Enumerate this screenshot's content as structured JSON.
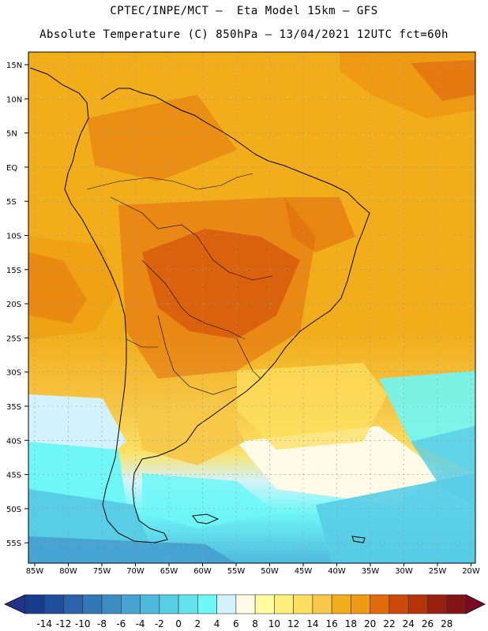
{
  "title_line1": "CPTEC/INPE/MCT –  Eta Model 15km – GFS",
  "title_line2": "Absolute Temperature (C) 850hPa – 13/04/2021 12UTC fct=60h",
  "lat_labels": [
    "15N",
    "10N",
    "5N",
    "EQ",
    "5S",
    "10S",
    "15S",
    "20S",
    "25S",
    "30S",
    "35S",
    "40S",
    "45S",
    "50S",
    "55S"
  ],
  "lon_labels": [
    "85W",
    "80W",
    "75W",
    "70W",
    "65W",
    "60W",
    "55W",
    "50W",
    "45W",
    "40W",
    "35W",
    "30W",
    "25W",
    "20W"
  ],
  "colorbar": {
    "ticks": [
      "-14",
      "-12",
      "-10",
      "-8",
      "-6",
      "-4",
      "-2",
      "0",
      "2",
      "4",
      "6",
      "8",
      "10",
      "12",
      "14",
      "16",
      "18",
      "20",
      "22",
      "24",
      "26",
      "28"
    ],
    "colors": [
      "#173c8c",
      "#1f4f9c",
      "#2b62aa",
      "#3477b7",
      "#3d8cc4",
      "#46a3d2",
      "#4fb9dd",
      "#58cde6",
      "#63e3ee",
      "#6ff7f7",
      "#d2f3fb",
      "#fffbe6",
      "#fffd9e",
      "#fff07e",
      "#fde060",
      "#f6c748",
      "#f2ae1a",
      "#ee9a12",
      "#e16a0d",
      "#cc4b0a",
      "#b4350a",
      "#972010",
      "#801616"
    ],
    "left_arrow_color": "#21348a",
    "right_arrow_color": "#7a0a26"
  }
}
